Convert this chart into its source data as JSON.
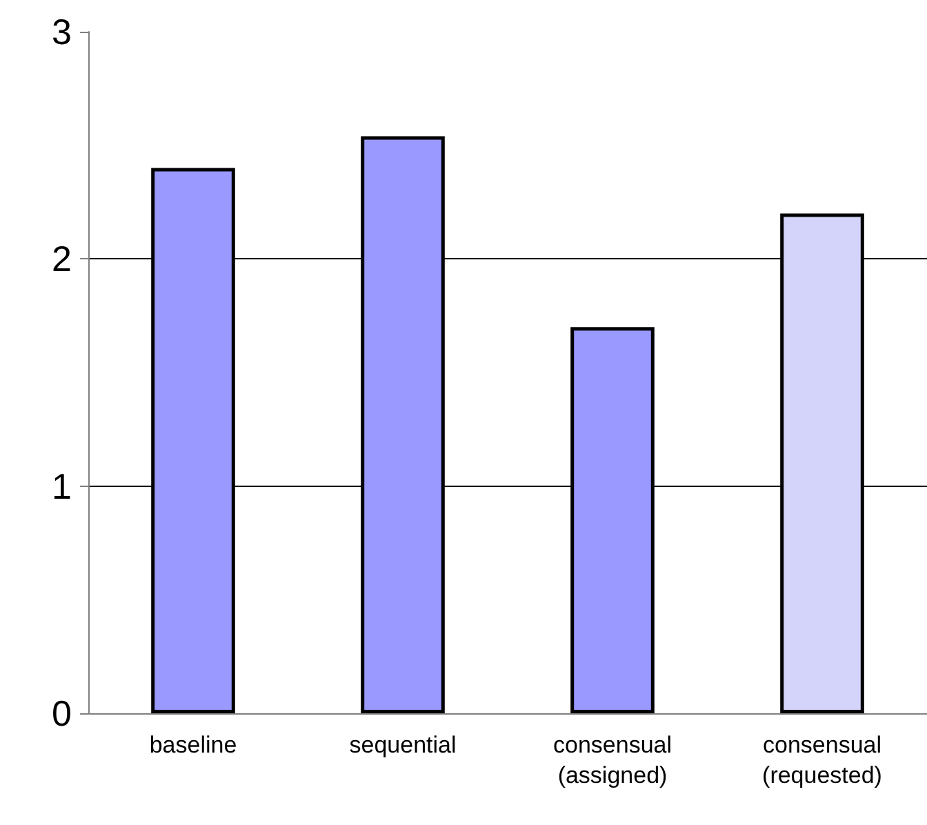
{
  "chart_data": {
    "type": "bar",
    "categories": [
      "baseline",
      "sequential",
      "consensual\n(assigned)",
      "consensual\n(requested)"
    ],
    "values": [
      2.4,
      2.54,
      1.7,
      2.2
    ],
    "colors": [
      "#9999ff",
      "#9999ff",
      "#9999ff",
      "#d4d4fb"
    ],
    "ylim": [
      0,
      3
    ],
    "yticks": [
      0,
      1,
      2,
      3
    ],
    "grid": "y"
  }
}
